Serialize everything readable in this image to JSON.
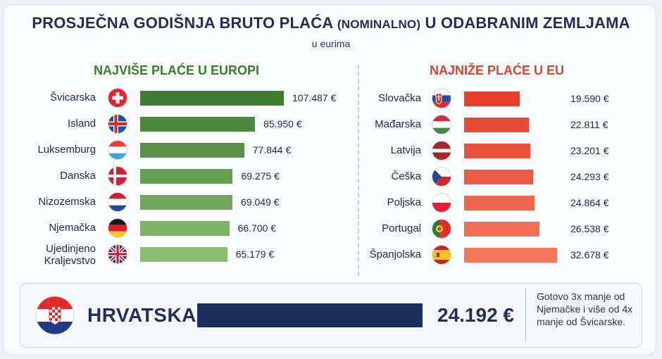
{
  "title_main": "PROSJEČNA GODIŠNJA BRUTO PLAĆA",
  "title_paren": "(NOMINALNO)",
  "title_end": "U ODABRANIM ZEMLJAMA",
  "subtitle": "u eurima",
  "colors": {
    "left_dark": "#3f7d33",
    "left_light": "#8cbd72",
    "right_dark": "#e5412d",
    "right_light": "#f2785e",
    "croatia": "#1b2d5a"
  },
  "chart_data": [
    {
      "type": "bar",
      "orientation": "horizontal",
      "title": "NAJVIŠE PLAĆE U EUROPI",
      "categories": [
        "Švicarska",
        "Island",
        "Luksemburg",
        "Danska",
        "Nizozemska",
        "Njemačka",
        "Ujedinjeno Kraljevstvo"
      ],
      "values": [
        107487,
        85950,
        77844,
        69275,
        69049,
        66700,
        65179
      ],
      "labels": [
        "107.487 €",
        "85.950 €",
        "77.844 €",
        "69.275 €",
        "69.049 €",
        "66.700 €",
        "65.179 €"
      ],
      "flags": [
        "swiss-flag-icon",
        "iceland-flag-icon",
        "luxembourg-flag-icon",
        "denmark-flag-icon",
        "netherlands-flag-icon",
        "germany-flag-icon",
        "uk-flag-icon"
      ]
    },
    {
      "type": "bar",
      "orientation": "horizontal",
      "title": "NAJNIŽE PLAĆE U EU",
      "categories": [
        "Slovačka",
        "Mađarska",
        "Latvija",
        "Češka",
        "Poljska",
        "Portugal",
        "Španjolska"
      ],
      "values": [
        19590,
        22811,
        23201,
        24293,
        24864,
        26538,
        32678
      ],
      "labels": [
        "19.590 €",
        "22.811 €",
        "23.201 €",
        "24.293 €",
        "24.864 €",
        "26.538 €",
        "32.678 €"
      ],
      "flags": [
        "slovakia-flag-icon",
        "hungary-flag-icon",
        "latvia-flag-icon",
        "czech-flag-icon",
        "poland-flag-icon",
        "portugal-flag-icon",
        "spain-flag-icon"
      ]
    }
  ],
  "croatia": {
    "name": "HRVATSKA",
    "value": 24192,
    "label": "24.192 €",
    "note": "Gotovo 3x manje od Njemačke i više od 4x manje od Švicarske."
  }
}
